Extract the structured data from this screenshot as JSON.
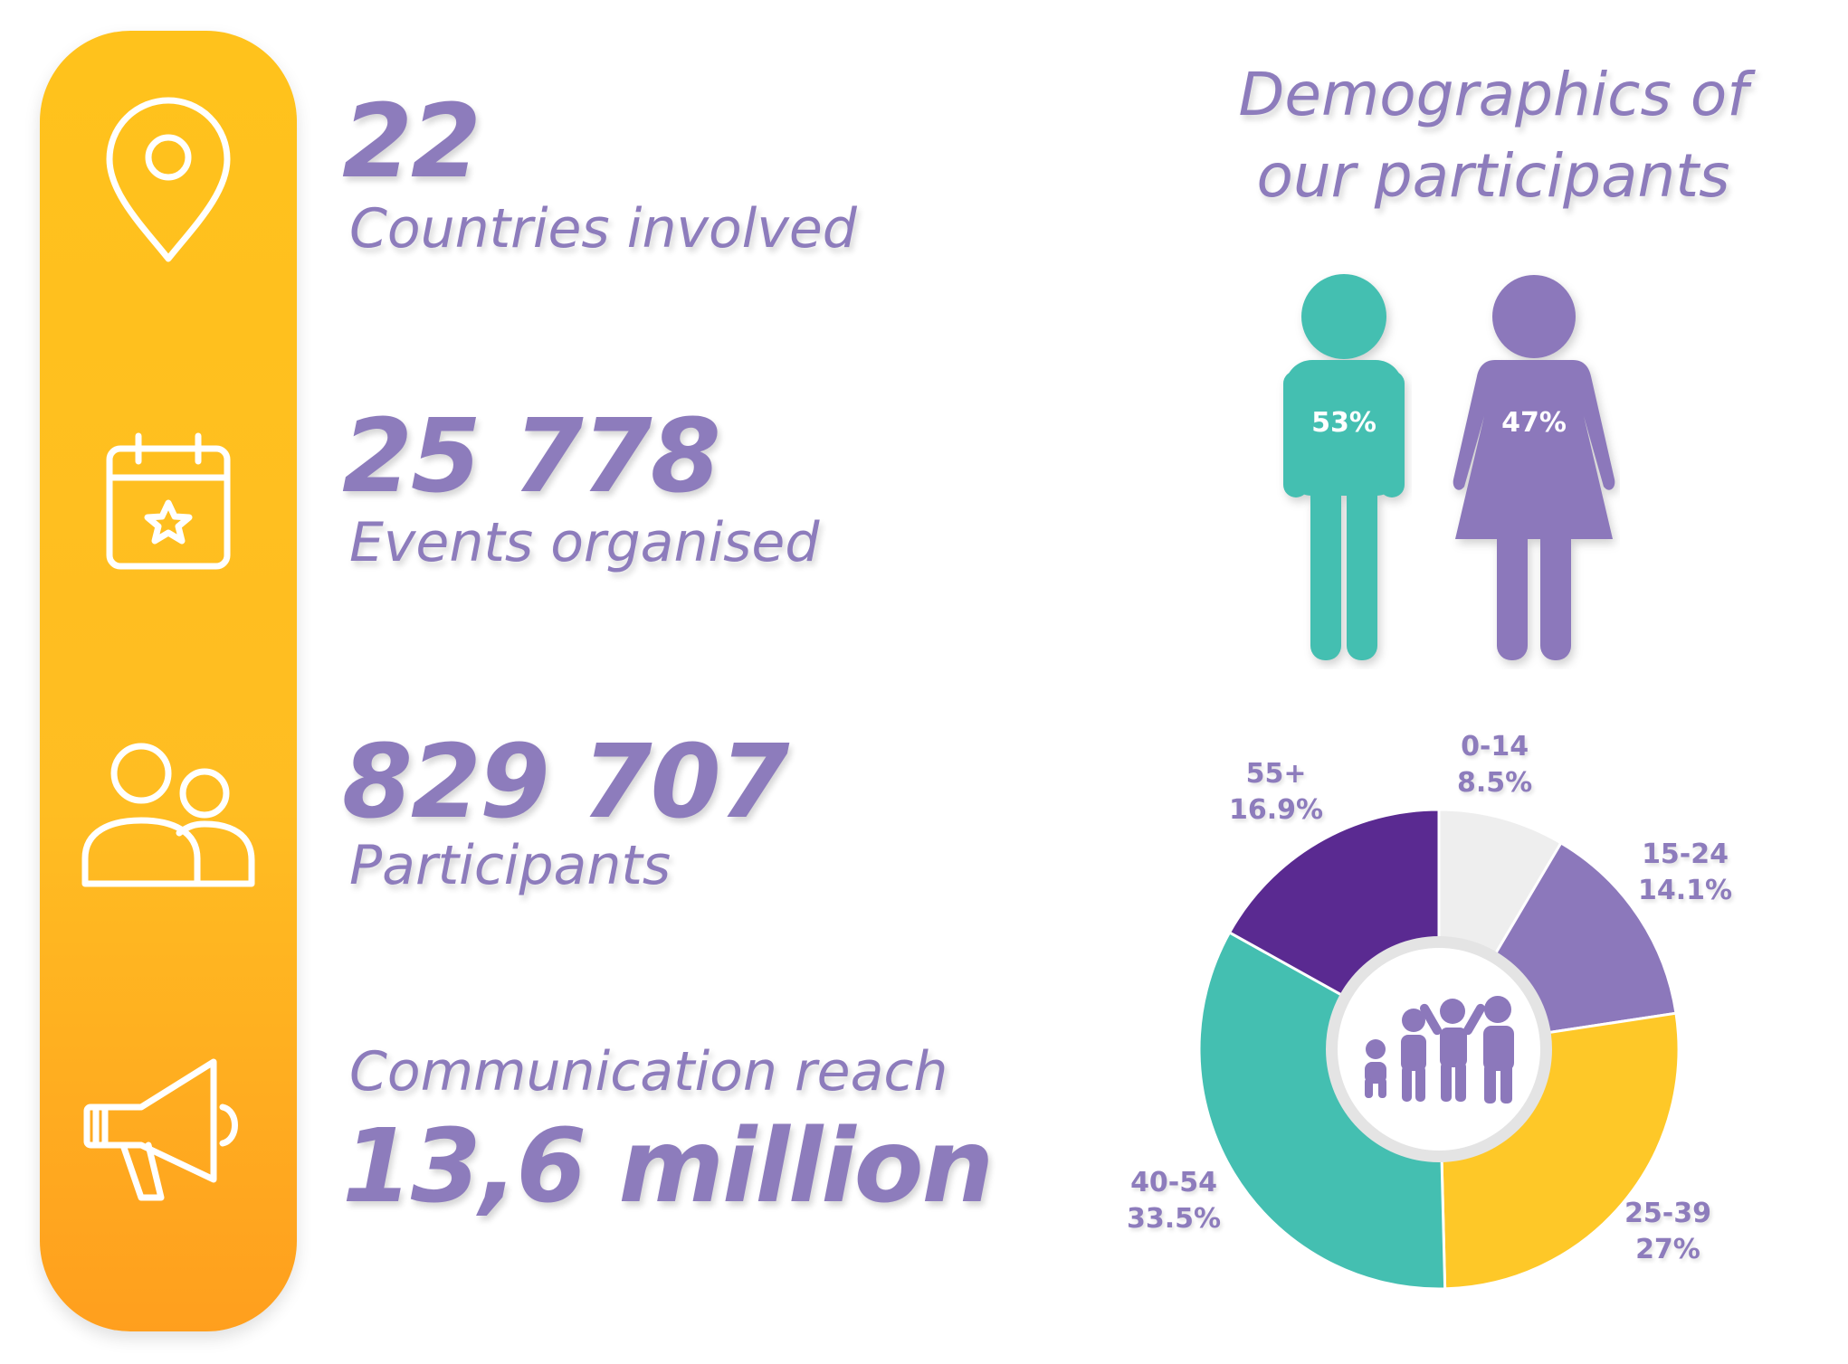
{
  "stats": [
    {
      "icon": "location-pin-icon",
      "value": "22",
      "label": "Countries involved"
    },
    {
      "icon": "calendar-star-icon",
      "value": "25 778",
      "label": "Events organised"
    },
    {
      "icon": "people-icon",
      "value": "829 707",
      "label": "Participants"
    },
    {
      "icon": "megaphone-icon",
      "label": "Communication reach",
      "value": "13,6 million"
    }
  ],
  "demographics": {
    "title_line1": "Demographics of",
    "title_line2": "our participants",
    "gender": {
      "male": {
        "icon": "male-figure-icon",
        "label": "53%",
        "value": 53
      },
      "female": {
        "icon": "female-figure-icon",
        "label": "47%",
        "value": 47
      }
    },
    "center_icon": "family-icon"
  },
  "colors": {
    "bar_top": "#ffc21c",
    "bar_bottom": "#ff9f1e",
    "text_purple": "#8d7cbc",
    "teal": "#44bfb1",
    "purple": "#8c78bb",
    "dark_purple": "#5a2a91",
    "yellow": "#fec828",
    "light_gray": "#eeeeee"
  },
  "chart_data": [
    {
      "type": "pie",
      "categories": [
        "Male",
        "Female"
      ],
      "values": [
        53,
        47
      ],
      "labels": [
        "53%",
        "47%"
      ]
    },
    {
      "type": "pie",
      "categories": [
        "0-14",
        "15-24",
        "25-39",
        "40-54",
        "55+"
      ],
      "values": [
        8.5,
        14.1,
        27,
        33.5,
        16.9
      ],
      "labels": [
        "8.5%",
        "14.1%",
        "27%",
        "33.5%",
        "16.9%"
      ],
      "colors": [
        "#eeeeee",
        "#8c78bb",
        "#fec828",
        "#44bfb1",
        "#5a2a91"
      ]
    }
  ]
}
